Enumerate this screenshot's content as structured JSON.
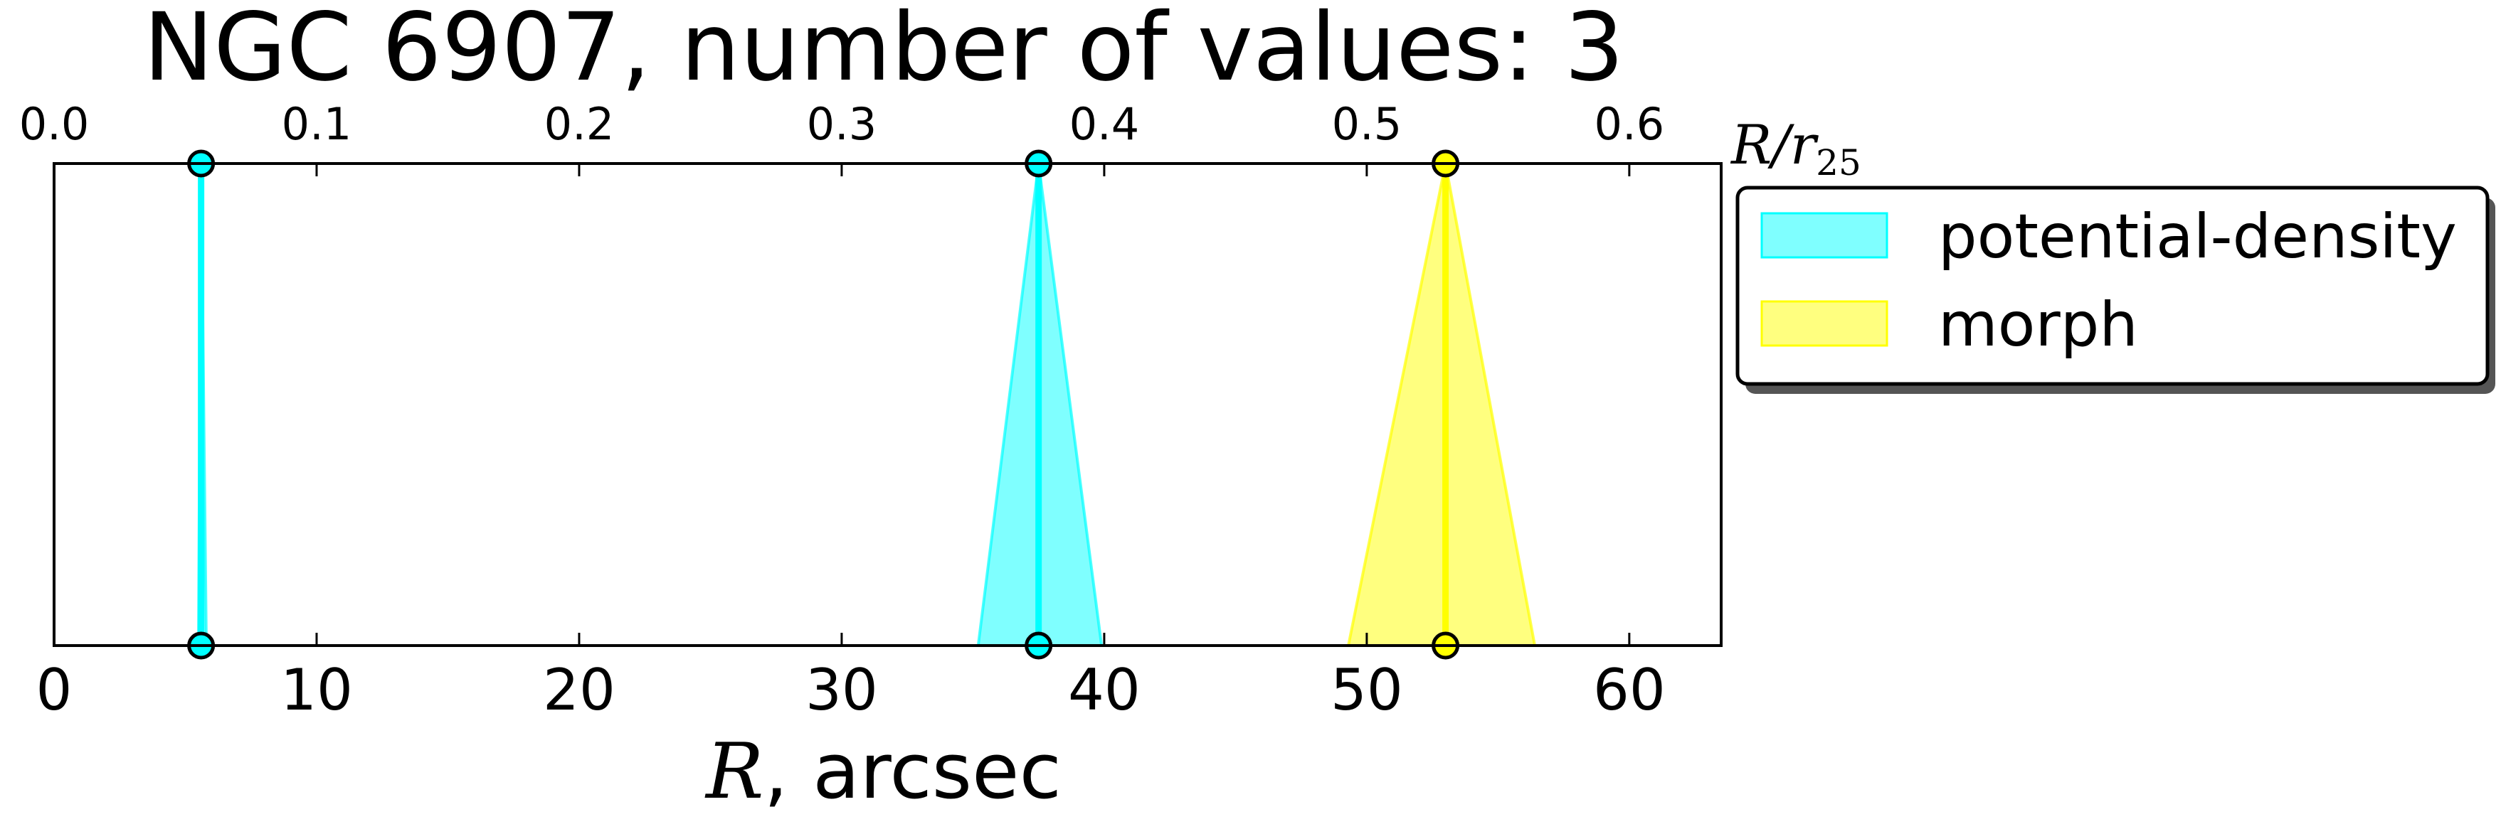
{
  "chart_data": {
    "type": "area",
    "title": "NGC 6907, number of values: 3",
    "xlabel_math": "R",
    "xlabel_rest": ", arcsec",
    "top_xlabel_main": "R/r",
    "top_xlabel_sub": "25",
    "xlim": [
      0,
      63.5
    ],
    "x_ticks": [
      0,
      10,
      20,
      30,
      40,
      50,
      60
    ],
    "x_tick_labels": [
      "0",
      "10",
      "20",
      "30",
      "40",
      "50",
      "60"
    ],
    "top_xlim": [
      0.0,
      0.635
    ],
    "top_ticks": [
      0.0,
      0.1,
      0.2,
      0.3,
      0.4,
      0.5,
      0.6
    ],
    "top_tick_labels": [
      "0.0",
      "0.1",
      "0.2",
      "0.3",
      "0.4",
      "0.5",
      "0.6"
    ],
    "grid": false,
    "legend_position": "outside-right-top",
    "series": [
      {
        "name": "potential-density",
        "color": "#00FFFF",
        "values": [
          {
            "x": 5.6,
            "lower": 5.5,
            "upper": 5.8
          },
          {
            "x": 37.5,
            "lower": 35.2,
            "upper": 39.9
          }
        ]
      },
      {
        "name": "morph",
        "color": "#FFFF00",
        "values": [
          {
            "x": 53.0,
            "lower": 49.3,
            "upper": 56.4
          }
        ]
      }
    ]
  }
}
